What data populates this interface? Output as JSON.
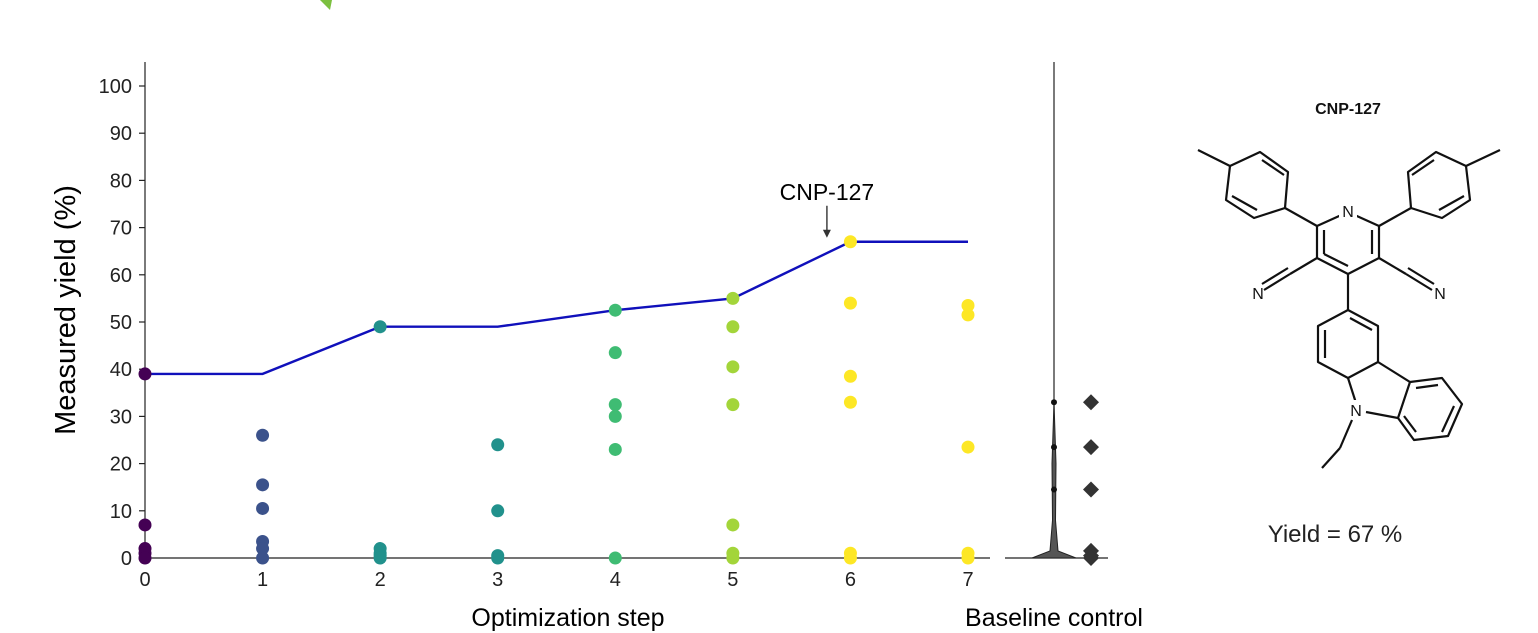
{
  "chart_data": {
    "type": "scatter",
    "xlabel": "Optimization step",
    "ylabel": "Measured yield (%)",
    "x_ticks": [
      "0",
      "1",
      "2",
      "3",
      "4",
      "5",
      "6",
      "7"
    ],
    "y_ticks": [
      "0",
      "10",
      "20",
      "30",
      "40",
      "50",
      "60",
      "70",
      "80",
      "90",
      "100"
    ],
    "xlim": [
      0,
      7
    ],
    "ylim": [
      0,
      100
    ],
    "grid": false,
    "step_colors": [
      "#440154",
      "#3b528b",
      "#21918c",
      "#21918c",
      "#3fbc73",
      "#a3d53a",
      "#fde725",
      "#fde725"
    ],
    "series": [
      {
        "x": 0,
        "yields": [
          39,
          7,
          2,
          1,
          0
        ]
      },
      {
        "x": 1,
        "yields": [
          26,
          15.5,
          10.5,
          3.5,
          2,
          0
        ]
      },
      {
        "x": 2,
        "yields": [
          49,
          2,
          1,
          0.5,
          0
        ]
      },
      {
        "x": 3,
        "yields": [
          24,
          10,
          0.5,
          0
        ]
      },
      {
        "x": 4,
        "yields": [
          52.5,
          43.5,
          32.5,
          30,
          23,
          0
        ]
      },
      {
        "x": 5,
        "yields": [
          55,
          49,
          40.5,
          32.5,
          7,
          1,
          0
        ]
      },
      {
        "x": 6,
        "yields": [
          67,
          54,
          38.5,
          33,
          1,
          0
        ]
      },
      {
        "x": 7,
        "yields": [
          53.5,
          51.5,
          23.5,
          1,
          0
        ]
      }
    ],
    "best_line": {
      "x": [
        0,
        1,
        2,
        3,
        4,
        5,
        6,
        7
      ],
      "y": [
        39,
        39,
        49,
        49,
        52.5,
        55,
        67,
        67
      ],
      "color": "#1010bb"
    },
    "annotation": {
      "text": "CNP-127",
      "x": 5.8,
      "y": 67
    },
    "baseline": {
      "label": "Baseline control",
      "values": [
        33,
        23.5,
        14.5,
        1.5,
        0.5,
        0
      ]
    }
  },
  "molecule": {
    "name": "CNP-127",
    "yield_text": "Yield = 67 %",
    "atom_labels": {
      "pyridine_n": "N",
      "nitrile_left": "N",
      "nitrile_right": "N",
      "carbazole_n": "N"
    }
  }
}
